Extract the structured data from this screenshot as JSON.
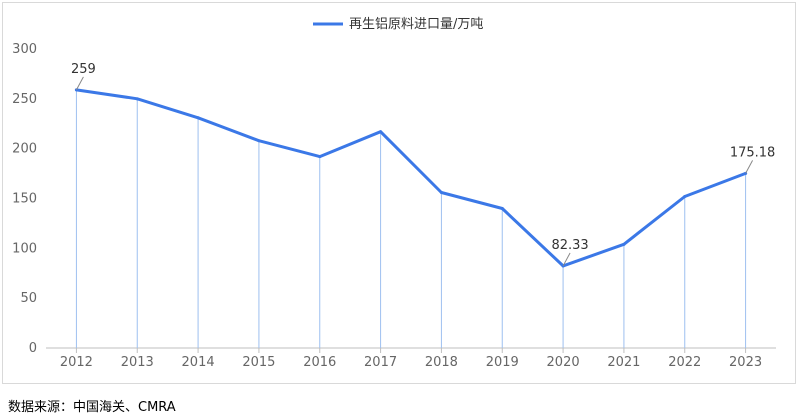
{
  "chart_data": {
    "type": "line",
    "legend": {
      "position": "top-center",
      "label": "再生铝原料进口量/万吨"
    },
    "categories": [
      "2012",
      "2013",
      "2014",
      "2015",
      "2016",
      "2017",
      "2018",
      "2019",
      "2020",
      "2021",
      "2022",
      "2023"
    ],
    "series": [
      {
        "name": "再生铝原料进口量/万吨",
        "values": [
          259,
          250,
          231,
          208,
          192,
          217,
          156,
          140,
          82.33,
          104,
          152,
          175.18
        ]
      }
    ],
    "data_labels": [
      {
        "index": 0,
        "text": "259"
      },
      {
        "index": 8,
        "text": "82.33"
      },
      {
        "index": 11,
        "text": "175.18"
      }
    ],
    "y_ticks": [
      "0",
      "50",
      "100",
      "150",
      "200",
      "250",
      "300"
    ],
    "ylim": [
      0,
      300
    ],
    "grid": false,
    "colors": {
      "line": "#3b78e7",
      "drop_line": "#9ec0f0",
      "axis": "#bfbfbf"
    }
  },
  "footer": {
    "source": "数据来源：中国海关、CMRA"
  }
}
